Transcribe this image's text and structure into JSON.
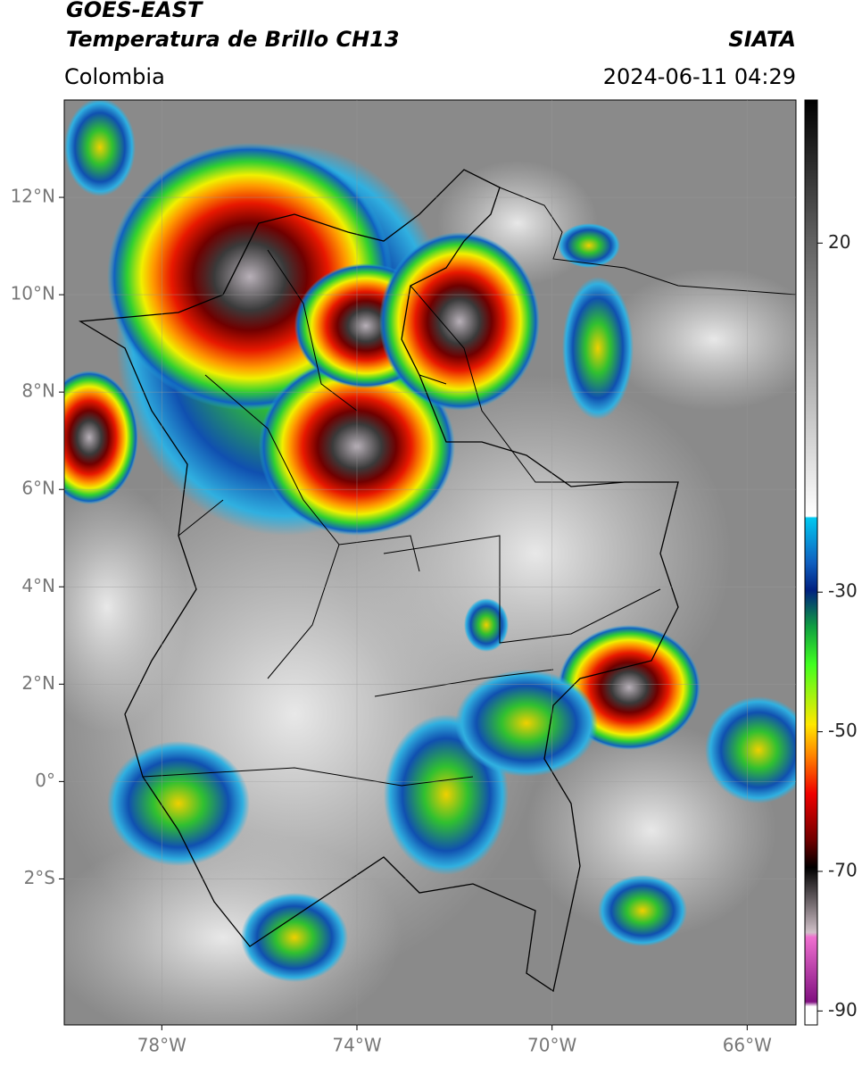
{
  "header": {
    "title": "GOES-EAST",
    "subtitle": "Temperatura de Brillo CH13",
    "source": "SIATA",
    "region": "Colombia",
    "timestamp": "2024-06-11 04:29"
  },
  "map": {
    "xlim": [
      -80,
      -65
    ],
    "ylim": [
      -5,
      14
    ],
    "xticks": [
      {
        "value": -78,
        "label": "78°W"
      },
      {
        "value": -74,
        "label": "74°W"
      },
      {
        "value": -70,
        "label": "70°W"
      },
      {
        "value": -66,
        "label": "66°W"
      }
    ],
    "yticks": [
      {
        "value": 12,
        "label": "12°N"
      },
      {
        "value": 10,
        "label": "10°N"
      },
      {
        "value": 8,
        "label": "8°N"
      },
      {
        "value": 6,
        "label": "6°N"
      },
      {
        "value": 4,
        "label": "4°N"
      },
      {
        "value": 2,
        "label": "2°N"
      },
      {
        "value": 0,
        "label": "0°"
      },
      {
        "value": -2,
        "label": "2°S"
      }
    ]
  },
  "colorbar": {
    "lim": [
      -92,
      40.5
    ],
    "ticks": [
      20,
      -30,
      -50,
      -70,
      -90
    ]
  }
}
